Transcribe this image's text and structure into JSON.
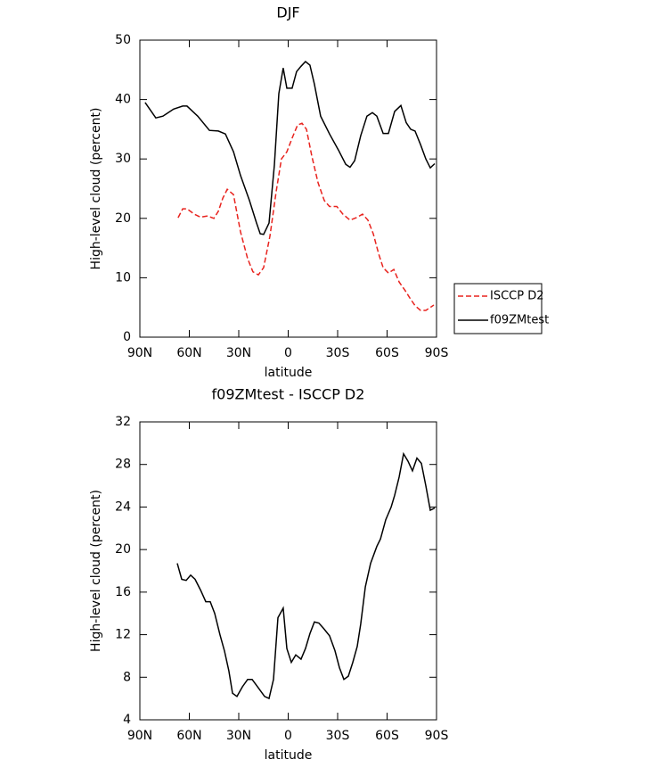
{
  "chart_data": [
    {
      "type": "line",
      "title": "DJF",
      "x_label": "latitude",
      "y_label": "High-level cloud (percent)",
      "xlim": [
        90,
        -90
      ],
      "xticks": [
        {
          "value": 90,
          "label": "90N"
        },
        {
          "value": 60,
          "label": "60N"
        },
        {
          "value": 30,
          "label": "30N"
        },
        0,
        {
          "value": -30,
          "label": "30S"
        },
        {
          "value": -60,
          "label": "60S"
        },
        {
          "value": -90,
          "label": "90S"
        }
      ],
      "ylim": [
        0,
        50
      ],
      "yticks": [
        0,
        10,
        20,
        30,
        40,
        50
      ],
      "legend": "right",
      "series": [
        {
          "name": "ISCCP D2",
          "color": "#e8231e",
          "style": "dashed",
          "x": [
            66.8,
            64,
            61.4,
            57,
            53.2,
            48.9,
            45.1,
            42.4,
            39.7,
            37,
            33.2,
            28.9,
            24.6,
            21.4,
            18.1,
            14.9,
            11.1,
            7.3,
            4.1,
            0.8,
            -2.4,
            -5.7,
            -8.4,
            -11.1,
            -14.3,
            -18.1,
            -21.9,
            -25.1,
            -29.5,
            -33.2,
            -37.5,
            -41.3,
            -45.1,
            -48.4,
            -51.6,
            -54.9,
            -57.6,
            -60.8,
            -64.1,
            -67.3,
            -71.1,
            -73.8,
            -77,
            -80.3,
            -83.5,
            -88.4
          ],
          "values": [
            20.1,
            21.6,
            21.6,
            20.7,
            20.2,
            20.4,
            20,
            21.2,
            23.4,
            24.9,
            24,
            17.7,
            13.2,
            11,
            10.5,
            11.7,
            17,
            24.5,
            30,
            31.2,
            33.5,
            35.7,
            36,
            35,
            30.5,
            26,
            23,
            22,
            22,
            20.7,
            19.7,
            20.1,
            20.7,
            19.7,
            17.4,
            14,
            11.7,
            10.8,
            11.4,
            9.3,
            7.8,
            6.6,
            5.3,
            4.5,
            4.5,
            5.4
          ]
        },
        {
          "name": "f09ZMtest",
          "color": "#000000",
          "style": "solid",
          "x": [
            86.8,
            80.3,
            76,
            69.5,
            64,
            61.4,
            54.9,
            47.8,
            42.4,
            38.1,
            33.2,
            28.9,
            23.5,
            19.2,
            17,
            14.9,
            11.6,
            8.4,
            5.7,
            3,
            0.8,
            -2.4,
            -5.1,
            -7.8,
            -10.5,
            -13.2,
            -15.9,
            -19.7,
            -25.1,
            -30.5,
            -34.9,
            -37.5,
            -40.3,
            -44,
            -47.8,
            -51.1,
            -53.8,
            -57.6,
            -60.8,
            -64.6,
            -68.4,
            -71.6,
            -74.3,
            -77,
            -80.3,
            -83.5,
            -86.2,
            -88.9
          ],
          "values": [
            39.5,
            36.9,
            37.2,
            38.4,
            38.9,
            38.9,
            37.2,
            34.8,
            34.7,
            34.2,
            31.2,
            27.2,
            23,
            19.2,
            17.4,
            17.3,
            19.2,
            29,
            41,
            45.3,
            41.9,
            41.9,
            44.7,
            45.6,
            46.4,
            45.8,
            42.6,
            37.2,
            34.2,
            31.5,
            29.1,
            28.6,
            29.7,
            33.9,
            37.2,
            37.8,
            37.2,
            34.3,
            34.3,
            38,
            39,
            36.1,
            35,
            34.7,
            32.4,
            30,
            28.5,
            29.2
          ]
        }
      ]
    },
    {
      "type": "line",
      "title": "f09ZMtest - ISCCP D2",
      "x_label": "latitude",
      "y_label": "High-level cloud (percent)",
      "xlim": [
        90,
        -90
      ],
      "xticks": [
        {
          "value": 90,
          "label": "90N"
        },
        {
          "value": 60,
          "label": "60N"
        },
        {
          "value": 30,
          "label": "30N"
        },
        0,
        {
          "value": -30,
          "label": "30S"
        },
        {
          "value": -60,
          "label": "60S"
        },
        {
          "value": -90,
          "label": "90S"
        }
      ],
      "ylim": [
        4,
        32
      ],
      "yticks": [
        4,
        8,
        12,
        16,
        20,
        24,
        28,
        32
      ],
      "series": [
        {
          "color": "#000000",
          "style": "solid",
          "x": [
            67.3,
            64.6,
            61.9,
            59.2,
            56.5,
            53.2,
            50,
            47.3,
            44.6,
            41.4,
            38.7,
            36,
            33.8,
            31.1,
            27.8,
            24.6,
            21.9,
            18.1,
            14.3,
            11.6,
            8.9,
            6.2,
            3,
            0.8,
            -1.9,
            -4.6,
            -7.8,
            -10.5,
            -13.2,
            -15.9,
            -18.6,
            -21.4,
            -25.1,
            -28.4,
            -31.1,
            -33.8,
            -36.5,
            -39.2,
            -41.9,
            -44,
            -46.8,
            -50,
            -53.8,
            -56,
            -59.2,
            -62.5,
            -64.6,
            -67.3,
            -70,
            -72.7,
            -75.4,
            -78.1,
            -80.8,
            -83.5,
            -86.2,
            -88.9
          ],
          "values": [
            18.7,
            17.2,
            17.1,
            17.6,
            17.2,
            16.2,
            15.1,
            15.1,
            14,
            12,
            10.5,
            8.6,
            6.5,
            6.2,
            7.1,
            7.8,
            7.8,
            7,
            6.2,
            6,
            7.8,
            13.6,
            14.5,
            10.7,
            9.4,
            10.1,
            9.7,
            10.7,
            12.1,
            13.2,
            13.1,
            12.6,
            11.9,
            10.5,
            8.9,
            7.8,
            8.1,
            9.4,
            10.9,
            13,
            16.5,
            18.7,
            20.3,
            21,
            22.8,
            24,
            25.1,
            26.8,
            29,
            28.3,
            27.4,
            28.6,
            28.1,
            26,
            23.7,
            23.9
          ]
        }
      ]
    }
  ]
}
